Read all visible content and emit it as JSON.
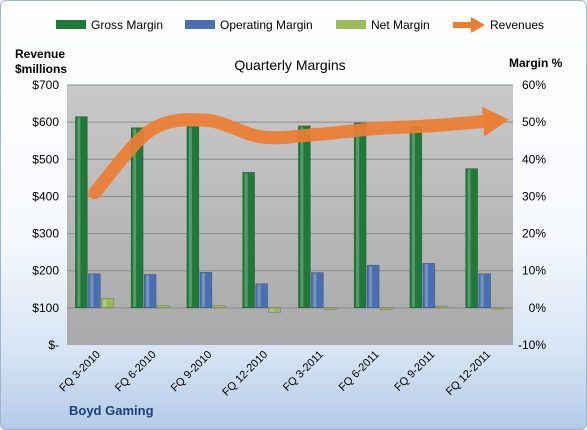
{
  "chart_data": {
    "type": "bar",
    "title": "Quarterly Margins",
    "company": "Boyd Gaming",
    "left_axis_label_line1": "Revenue",
    "left_axis_label_line2": "$millions",
    "right_axis_label": "Margin %",
    "categories": [
      "FQ 3-2010",
      "FQ 6-2010",
      "FQ 9-2010",
      "FQ 12-2010",
      "FQ 3-2011",
      "FQ 6-2011",
      "FQ 9-2011",
      "FQ 12-2011"
    ],
    "left_ticks": [
      "$-",
      "$100",
      "$200",
      "$300",
      "$400",
      "$500",
      "$600",
      "$700"
    ],
    "right_ticks": [
      "-10%",
      "0%",
      "10%",
      "20%",
      "30%",
      "40%",
      "50%",
      "60%"
    ],
    "left_ylim": [
      0,
      700
    ],
    "right_ylim": [
      -10,
      60
    ],
    "legend_position": "top",
    "series": [
      {
        "name": "Gross Margin",
        "axis": "right",
        "kind": "bar",
        "color": "#1f7a3a",
        "values": [
          51.5,
          48.5,
          48.8,
          36.5,
          49,
          49.8,
          48.8,
          37.5
        ]
      },
      {
        "name": "Operating Margin",
        "axis": "right",
        "kind": "bar",
        "color": "#4a6fb0",
        "values": [
          9.2,
          9,
          9.6,
          6.5,
          9.5,
          11.5,
          12,
          9.2
        ]
      },
      {
        "name": "Net Margin",
        "axis": "right",
        "kind": "bar",
        "color": "#9bbb59",
        "values": [
          2.5,
          0.6,
          0.6,
          -1.2,
          -0.5,
          -0.5,
          0.5,
          -0.3
        ]
      },
      {
        "name": "Revenues",
        "axis": "left",
        "kind": "arrow-line",
        "color": "#ed7d31",
        "values": [
          410,
          578,
          605,
          560,
          567,
          582,
          590,
          602
        ]
      }
    ]
  }
}
